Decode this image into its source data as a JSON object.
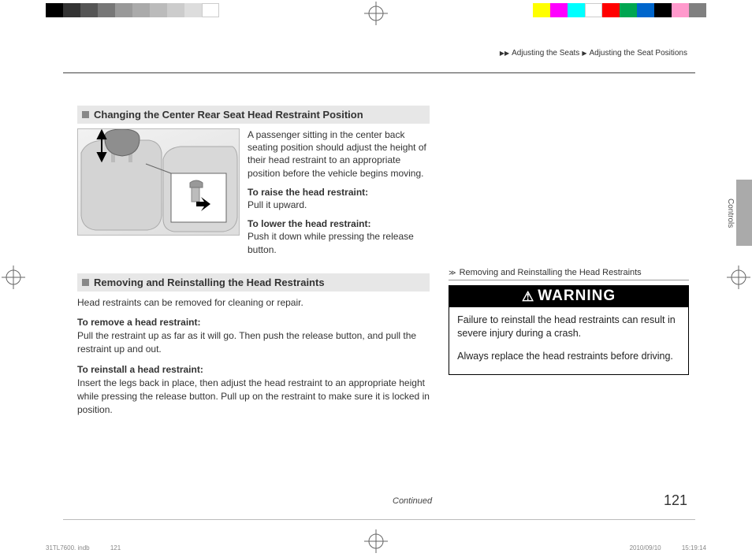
{
  "colorbars": {
    "left": [
      "#000000",
      "#333333",
      "#555555",
      "#777777",
      "#999999",
      "#aaaaaa",
      "#bbbbbb",
      "#cccccc",
      "#dddddd",
      "#ffffff"
    ],
    "right": [
      "#ffff00",
      "#ff00ff",
      "#00ffff",
      "#ffffff",
      "#ff0000",
      "#00a651",
      "#0066cc",
      "#000000",
      "#ff99cc",
      "#808080"
    ]
  },
  "breadcrumb": {
    "items": [
      "Adjusting the Seats",
      "Adjusting the Seat Positions"
    ]
  },
  "side_tab_label": "Controls",
  "section1": {
    "heading": "Changing the Center Rear Seat Head Restraint Position",
    "intro": "A passenger sitting in the center back seating position should adjust the height of their head restraint to an appropriate position before the vehicle begins moving.",
    "raise_label": "To raise the head restraint:",
    "raise_text": "Pull it upward.",
    "lower_label": "To lower the head restraint:",
    "lower_text": "Push it down while pressing the release button."
  },
  "section2": {
    "heading": "Removing and Reinstalling the Head Restraints",
    "p1": "Head restraints can be removed for cleaning or repair.",
    "remove_label": "To remove a head restraint:",
    "remove_text": "Pull the restraint up as far as it will go. Then push the release button, and pull the restraint up and out.",
    "reinstall_label": "To reinstall a head restraint:",
    "reinstall_text": "Insert the legs back in place, then adjust the head restraint to an appropriate height while pressing the release button. Pull up on the restraint to make sure it is locked in position."
  },
  "sidebar": {
    "heading": "Removing and Reinstalling the Head Restraints",
    "warning_title": "WARNING",
    "warning_p1": "Failure to reinstall the head restraints can result in severe injury during a crash.",
    "warning_p2": "Always replace the head restraints before driving."
  },
  "continued": "Continued",
  "page_number": "121",
  "footer": {
    "file": "31TL7600. indb",
    "file_page": "121",
    "date": "2010/09/10",
    "time": "15:19:14"
  },
  "illustration": {
    "bg_gradient": [
      "#f2f2f2",
      "#dddddd"
    ],
    "headrest_color": "#8e8e8e",
    "seat_color": "#d0d0d0",
    "callout_bg": "#ffffff",
    "arrow_color": "#000000"
  }
}
